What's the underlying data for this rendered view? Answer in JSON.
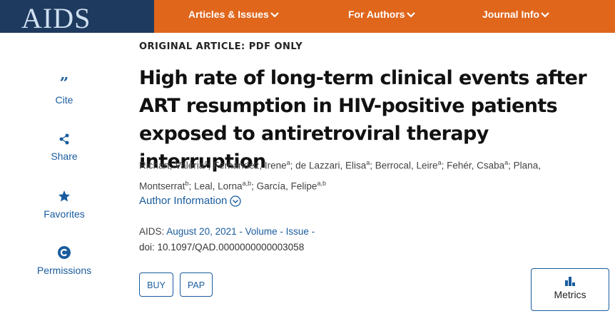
{
  "header": {
    "logo": "AIDS",
    "nav": [
      "Articles & Issues",
      "For Authors",
      "Journal Info"
    ]
  },
  "sidebar": [
    "Cite",
    "Share",
    "Favorites",
    "Permissions"
  ],
  "article": {
    "label": "ORIGINAL ARTICLE: PDF ONLY",
    "title": "High rate of long-term clinical events after ART resumption in HIV-positive patients exposed to antiretroviral therapy interruption",
    "author_separator": "; ",
    "authors": [
      {
        "name": "Richart, Valèria",
        "affiliation": "a"
      },
      {
        "name": "Fernández, Irene",
        "affiliation": "a"
      },
      {
        "name": "de Lazzari, Elisa",
        "affiliation": "a"
      },
      {
        "name": "Berrocal, Leire",
        "affiliation": "a"
      },
      {
        "name": "Fehér, Csaba",
        "affiliation": "a"
      },
      {
        "name": "Plana, Montserrat",
        "affiliation": "b"
      },
      {
        "name": "Leal, Lorna",
        "affiliation": "a,b"
      },
      {
        "name": "García, Felipe",
        "affiliation": "a,b"
      }
    ],
    "author_information": "Author Information",
    "journal": "AIDS:",
    "issue_link": "August 20, 2021 - Volume - Issue -",
    "doi": "doi: 10.1097/QAD.0000000000003058",
    "buttons": [
      "BUY",
      "PAP"
    ],
    "metrics": "Metrics"
  }
}
